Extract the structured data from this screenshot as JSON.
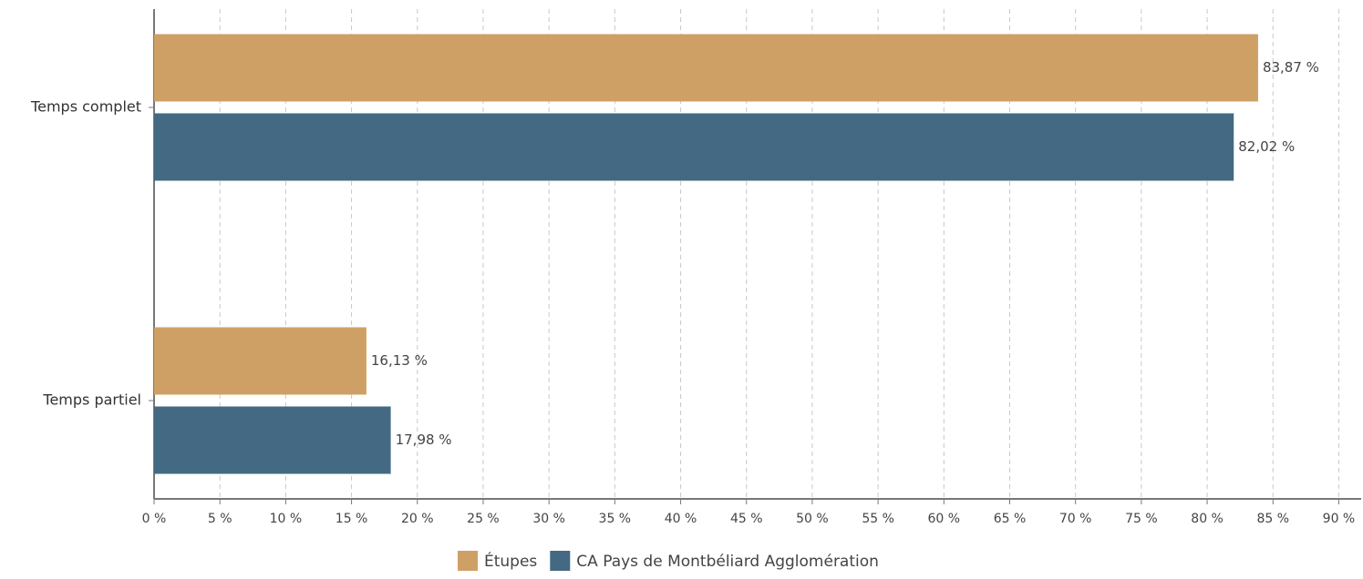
{
  "chart_data": {
    "type": "hbar",
    "categories": [
      "Temps complet",
      "Temps partiel"
    ],
    "series": [
      {
        "name": "Étupes",
        "color": "#cfa065",
        "values": [
          83.87,
          16.13
        ],
        "value_labels": [
          "83,87 %",
          "16,13 %"
        ]
      },
      {
        "name": "CA Pays de Montbéliard Agglomération",
        "color": "#436a82",
        "values": [
          82.02,
          17.98
        ],
        "value_labels": [
          "82,02 %",
          "17,98 %"
        ]
      }
    ],
    "xlim": [
      0,
      91.7
    ],
    "xticks": [
      {
        "value": 0,
        "label": "0 %"
      },
      {
        "value": 5,
        "label": "5 %"
      },
      {
        "value": 10,
        "label": "10 %"
      },
      {
        "value": 15,
        "label": "15 %"
      },
      {
        "value": 20,
        "label": "20 %"
      },
      {
        "value": 25,
        "label": "25 %"
      },
      {
        "value": 30,
        "label": "30 %"
      },
      {
        "value": 35,
        "label": "35 %"
      },
      {
        "value": 40,
        "label": "40 %"
      },
      {
        "value": 45,
        "label": "45 %"
      },
      {
        "value": 50,
        "label": "50 %"
      },
      {
        "value": 55,
        "label": "55 %"
      },
      {
        "value": 60,
        "label": "60 %"
      },
      {
        "value": 65,
        "label": "65 %"
      },
      {
        "value": 70,
        "label": "70 %"
      },
      {
        "value": 75,
        "label": "75 %"
      },
      {
        "value": 80,
        "label": "80 %"
      },
      {
        "value": 85,
        "label": "85 %"
      },
      {
        "value": 90,
        "label": "90 %"
      }
    ],
    "grid": true,
    "legend": "bottom"
  }
}
